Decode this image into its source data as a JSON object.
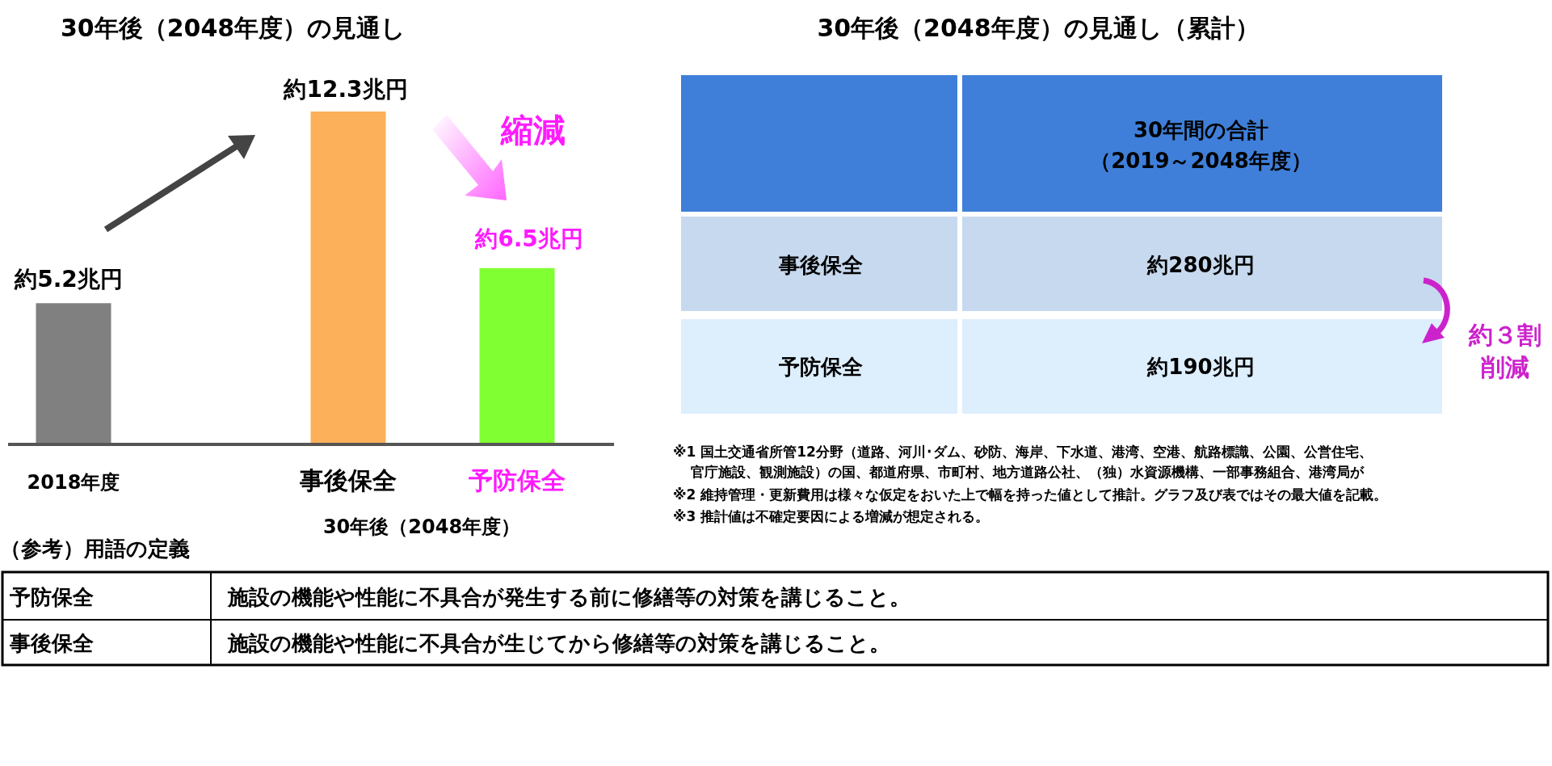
{
  "chart_data": [
    {
      "type": "bar",
      "title": "30年後（2048年度）の見通し",
      "categories": [
        "2018年度",
        "事後保全",
        "予防保全"
      ],
      "values": [
        5.2,
        12.3,
        6.5
      ],
      "colors": [
        "#808080",
        "#fdb05a",
        "#80ff33"
      ],
      "value_labels": [
        "約5.2兆円",
        "約12.3兆円",
        "約6.5兆円"
      ],
      "annotations": [
        "縮減",
        "30年後（2048年度）"
      ]
    },
    {
      "type": "other",
      "title": "30年後（2048年度）の見通し（累計）",
      "annotations": [
        "30年間の合計",
        "（2019～2048年度）",
        "事後保全",
        "約280兆円",
        "予防保全",
        "約190兆円",
        "約３割",
        "削減",
        "※1 国土交通省所管12分野（道路、河川･ダム、砂防、海岸、下水道、港湾、空港、航路標識、公園、公営住宅、",
        "官庁施設、観測施設）の国、都道府県、市町村、地方道路公社、（独）水資源機構、一部事務組合、港湾局が",
        "※2 維持管理・更新費用は様々な仮定をおいた上で幅を持った値として推計。グラフ及び表ではその最大値を記載。",
        "※3 推計値は不確定要因による増減が想定される。"
      ]
    },
    {
      "type": "other",
      "title": "（参考）用語の定義",
      "annotations": [
        "予防保全",
        "施設の機能や性能に不具合が発生する前に修繕等の対策を講じること。",
        "事後保全",
        "施設の機能や性能に不具合が生じてから修繕等の対策を講じること。"
      ]
    }
  ]
}
